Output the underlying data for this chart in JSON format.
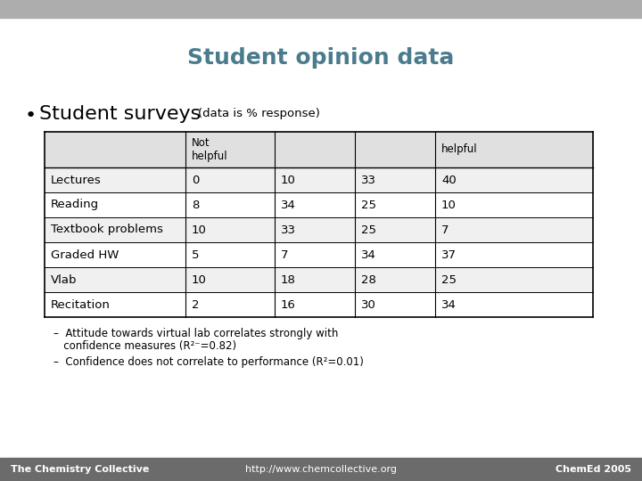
{
  "title": "Student opinion data",
  "title_color": "#4a7c8e",
  "bullet_large": "Student surveys",
  "bullet_small": "(data is % response)",
  "table_headers": [
    "",
    "Not\nhelpful",
    "",
    "",
    "helpful"
  ],
  "table_rows": [
    [
      "Lectures",
      "0",
      "10",
      "33",
      "40"
    ],
    [
      "Reading",
      "8",
      "34",
      "25",
      "10"
    ],
    [
      "Textbook problems",
      "10",
      "33",
      "25",
      "7"
    ],
    [
      "Graded HW",
      "5",
      "7",
      "34",
      "37"
    ],
    [
      "Vlab",
      "10",
      "18",
      "28",
      "25"
    ],
    [
      "Recitation",
      "2",
      "16",
      "30",
      "34"
    ]
  ],
  "note1_line1": "–  Attitude towards virtual lab correlates strongly with",
  "note1_line2": "   confidence measures (R²⁻=0.82)",
  "note2": "–  Confidence does not correlate to performance (R²=0.01)",
  "footer_left": "The Chemistry Collective",
  "footer_center": "http://www.chemcollective.org",
  "footer_right": "ChemEd 2005",
  "top_bar_color": "#adadad",
  "footer_bar_color": "#6b6b6b",
  "footer_text_color": "#ffffff",
  "bg_color": "#ffffff",
  "table_header_bg": "#e0e0e0",
  "table_row_bg_odd": "#f0f0f0",
  "table_row_bg_even": "#ffffff"
}
